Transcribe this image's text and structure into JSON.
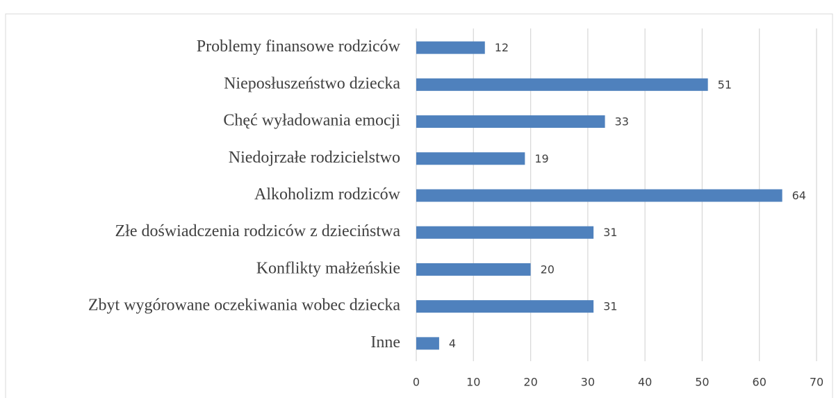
{
  "chart_data": {
    "type": "bar",
    "orientation": "horizontal",
    "categories": [
      "Problemy finansowe rodziców",
      "Nieposłuszeństwo dziecka",
      "Chęć wyładowania emocji",
      "Niedojrzałe rodzicielstwo",
      "Alkoholizm rodziców",
      "Złe doświadczenia rodziców z dzieciństwa",
      "Konflikty małżeńskie",
      "Zbyt wygórowane oczekiwania wobec dziecka",
      "Inne"
    ],
    "values": [
      12,
      51,
      33,
      19,
      64,
      31,
      20,
      31,
      4
    ],
    "color": "#4f81bd",
    "xlim": [
      0,
      70
    ],
    "xticks": [
      0,
      10,
      20,
      30,
      40,
      50,
      60,
      70
    ],
    "grid": true
  }
}
